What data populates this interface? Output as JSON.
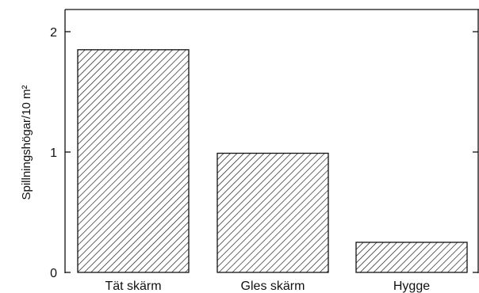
{
  "chart_data": {
    "type": "bar",
    "title": "",
    "xlabel": "",
    "ylabel": "Spillningshögar/10 m²",
    "categories": [
      "Tät skärm",
      "Gles skärm",
      "Hygge"
    ],
    "values": [
      1.85,
      0.99,
      0.25
    ],
    "ylim": [
      0,
      2.2
    ],
    "yticks": [
      0,
      1,
      2
    ],
    "grid": false,
    "legend": "none",
    "bar_fill": "diagonal-hatch",
    "colors": {
      "ink": "#111111",
      "bar_background": "#ffffff"
    }
  }
}
